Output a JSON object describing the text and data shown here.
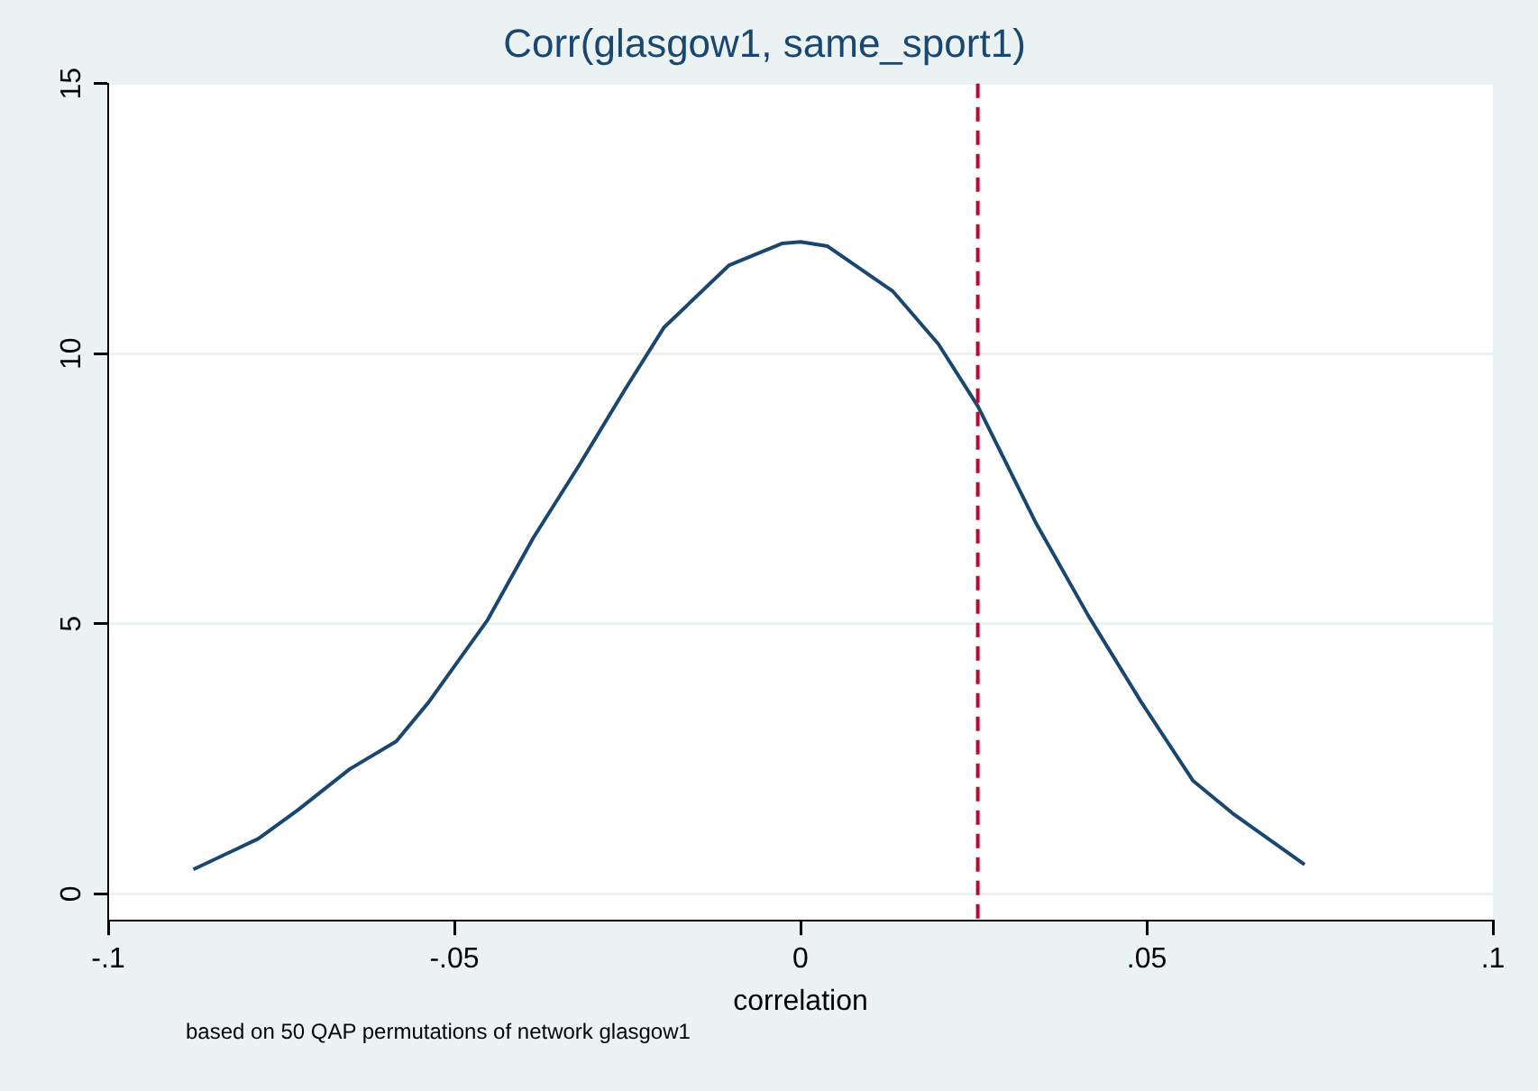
{
  "chart_data": {
    "type": "line",
    "title": "Corr(glasgow1, same_sport1)",
    "xlabel": "correlation",
    "annotations": [
      "based on 50 QAP permutations of network glasgow1"
    ],
    "series": [
      {
        "color": "#1a476f",
        "x": [
          -0.0877,
          -0.0783,
          -0.0726,
          -0.0651,
          -0.0584,
          -0.0537,
          -0.0452,
          -0.0386,
          -0.032,
          -0.0254,
          -0.0197,
          -0.0103,
          -0.0027,
          0,
          0.0039,
          0.0133,
          0.0199,
          0.0256,
          0.0341,
          0.0416,
          0.0492,
          0.0567,
          0.0624,
          0.0728
        ],
        "values": [
          0.45,
          1.02,
          1.55,
          2.31,
          2.82,
          3.55,
          5.07,
          6.59,
          7.93,
          9.33,
          10.49,
          11.64,
          12.04,
          12.07,
          11.99,
          11.16,
          10.18,
          9.03,
          6.84,
          5.14,
          3.55,
          2.09,
          1.49,
          0.54
        ]
      }
    ],
    "ref_lines": [
      {
        "axis": "x",
        "value": 0.0256,
        "color": "#c10534",
        "line_style": "dashed"
      }
    ],
    "xlim": [
      -0.1,
      0.1
    ],
    "ylim": [
      -0.5,
      15
    ],
    "xticks": [
      {
        "value": -0.1,
        "label": "-.1"
      },
      {
        "value": -0.05,
        "label": "-.05"
      },
      0,
      {
        "value": 0.05,
        "label": ".05"
      },
      {
        "value": 0.1,
        "label": ".1"
      }
    ],
    "yticks": [
      0,
      5,
      10,
      15
    ],
    "grid": "y",
    "legend": false,
    "marker": "none",
    "line_style": "solid"
  }
}
